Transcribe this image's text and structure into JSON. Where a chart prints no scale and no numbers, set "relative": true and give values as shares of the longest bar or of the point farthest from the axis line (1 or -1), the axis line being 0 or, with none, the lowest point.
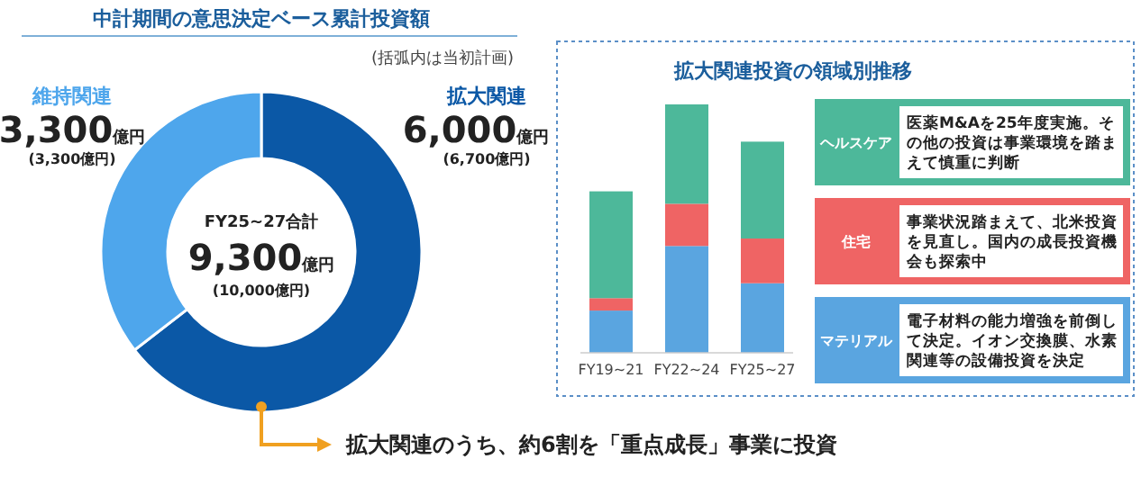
{
  "chart_data": [
    {
      "type": "donut",
      "title": "中計期間の意思決定ベース累計投資額",
      "subtitle": "(括弧内は当初計画)",
      "categories": [
        "拡大関連",
        "維持関連"
      ],
      "values": [
        6000,
        3300
      ],
      "colors": [
        "#0b58a6",
        "#4ea6ec"
      ],
      "value_labels": [
        "6,000億円",
        "3,300億円"
      ],
      "annotations": [
        "(6,700億円)",
        "(3,300億円)",
        "FY25~27合計",
        "9,300億円",
        "(10,000億円)",
        "拡大関連のうち、約6割を「重点成長」事業に投資"
      ]
    },
    {
      "type": "bar",
      "stacked": true,
      "relative": true,
      "title": "拡大関連投資の領域別推移",
      "legend": "right",
      "categories": [
        "FY19~21",
        "FY22~24",
        "FY25~27"
      ],
      "series": [
        {
          "name": "マテリアル",
          "color": "#5aa5e0",
          "values": [
            0.17,
            0.43,
            0.28
          ]
        },
        {
          "name": "住宅",
          "color": "#ef6464",
          "values": [
            0.05,
            0.17,
            0.18
          ]
        },
        {
          "name": "ヘルスケア",
          "color": "#4db89a",
          "values": [
            0.43,
            0.4,
            0.39
          ]
        }
      ],
      "annotations": [
        "電子材料の能力増強を前倒して決定。イオン交換膜、水素関連等の設備投資を決定",
        "事業状況踏まえて、北米投資を見直し。国内の成長投資機会も探索中",
        "医薬M&Aを25年度実施。その他の投資は事業環境を踏まえて慎重に判断"
      ]
    }
  ]
}
